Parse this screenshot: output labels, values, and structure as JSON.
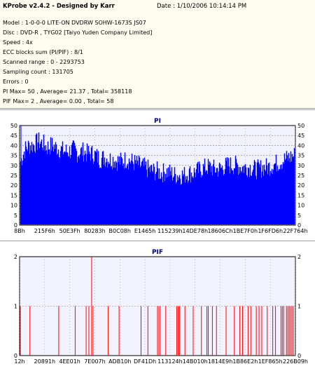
{
  "app": {
    "title": "KProbe v2.4.2 - Designed by Karr",
    "date": "Date : 1/10/2006 10:14:14 PM"
  },
  "info_lines": [
    "Model : 1-0-0-0 LITE-ON DVDRW SOHW-1673S JS07",
    "Disc : DVD-R , TYG02 [Taiyo Yuden Company Limited]",
    "Speed : 4x",
    "ECC blocks sum (PI/PIF) : 8/1",
    "Scanned range : 0 - 2293753",
    "Sampling count : 131705",
    "Errors : 0",
    "PI Max= 50 , Average= 21.37 , Total= 358118",
    "PIF Max= 2 , Average= 0.00 , Total= 58"
  ],
  "colors": {
    "plot_bg": "#f2f2ff",
    "pi_fill": "#0000ff",
    "pif_bar": "#ff0000",
    "grid": "#7f7f7f",
    "title": "#000080"
  },
  "chart_data": [
    {
      "type": "area",
      "title": "PI",
      "ylim": [
        0,
        50
      ],
      "yticks": [
        0,
        5,
        10,
        15,
        20,
        25,
        30,
        35,
        40,
        45,
        50
      ],
      "xtick_labels": [
        "8Bh",
        "215F6h",
        "50E3Fh",
        "80283h",
        "B0C08h",
        "E1465h",
        "115239h",
        "14DE78h",
        "18606Ch",
        "1BE7F0h",
        "1F6FD6h",
        "22F764h"
      ],
      "series": [
        {
          "values": [
            32,
            38,
            40,
            40,
            42,
            41,
            39,
            40,
            39,
            38,
            37,
            37,
            38,
            36,
            37,
            36,
            36,
            35,
            33,
            34,
            33,
            33,
            32,
            32,
            33,
            32,
            31,
            30,
            29,
            28,
            27,
            27,
            26,
            27,
            26,
            25,
            25,
            25,
            26,
            26,
            27,
            28,
            29,
            29,
            28,
            28,
            29,
            30,
            30,
            30,
            29,
            29,
            29,
            28,
            28,
            29,
            29,
            30,
            31,
            32,
            33,
            34,
            35
          ]
        }
      ]
    },
    {
      "type": "bar",
      "title": "PIF",
      "ylim": [
        0,
        2
      ],
      "yticks": [
        0,
        1,
        2
      ],
      "xtick_labels": [
        "12h",
        "20891h",
        "4EE01h",
        "7E007h",
        "ADB10h",
        "DF41Dh",
        "113124h",
        "14B010h",
        "1814E9h",
        "1B86E2h",
        "1EF865h",
        "226B09h"
      ],
      "x": [
        0.0,
        0.035,
        0.14,
        0.2,
        0.24,
        0.25,
        0.26,
        0.265,
        0.32,
        0.36,
        0.44,
        0.465,
        0.5,
        0.505,
        0.51,
        0.53,
        0.57,
        0.575,
        0.58,
        0.6,
        0.63,
        0.66,
        0.68,
        0.685,
        0.7,
        0.715,
        0.75,
        0.78,
        0.8,
        0.81,
        0.83,
        0.84,
        0.86,
        0.87,
        0.88,
        0.9,
        0.92,
        0.93,
        0.95,
        0.955,
        0.96,
        0.97,
        0.975,
        0.98,
        0.985,
        0.99,
        0.995
      ],
      "values": [
        1,
        1,
        1,
        1,
        1,
        1,
        2,
        1,
        1,
        1,
        1,
        1,
        1,
        1,
        1,
        1,
        1,
        1,
        1,
        1,
        1,
        1,
        1,
        1,
        1,
        1,
        1,
        1,
        1,
        1,
        1,
        1,
        1,
        1,
        1,
        1,
        1,
        1,
        1,
        1,
        1,
        1,
        1,
        1,
        1,
        1,
        1
      ]
    }
  ]
}
